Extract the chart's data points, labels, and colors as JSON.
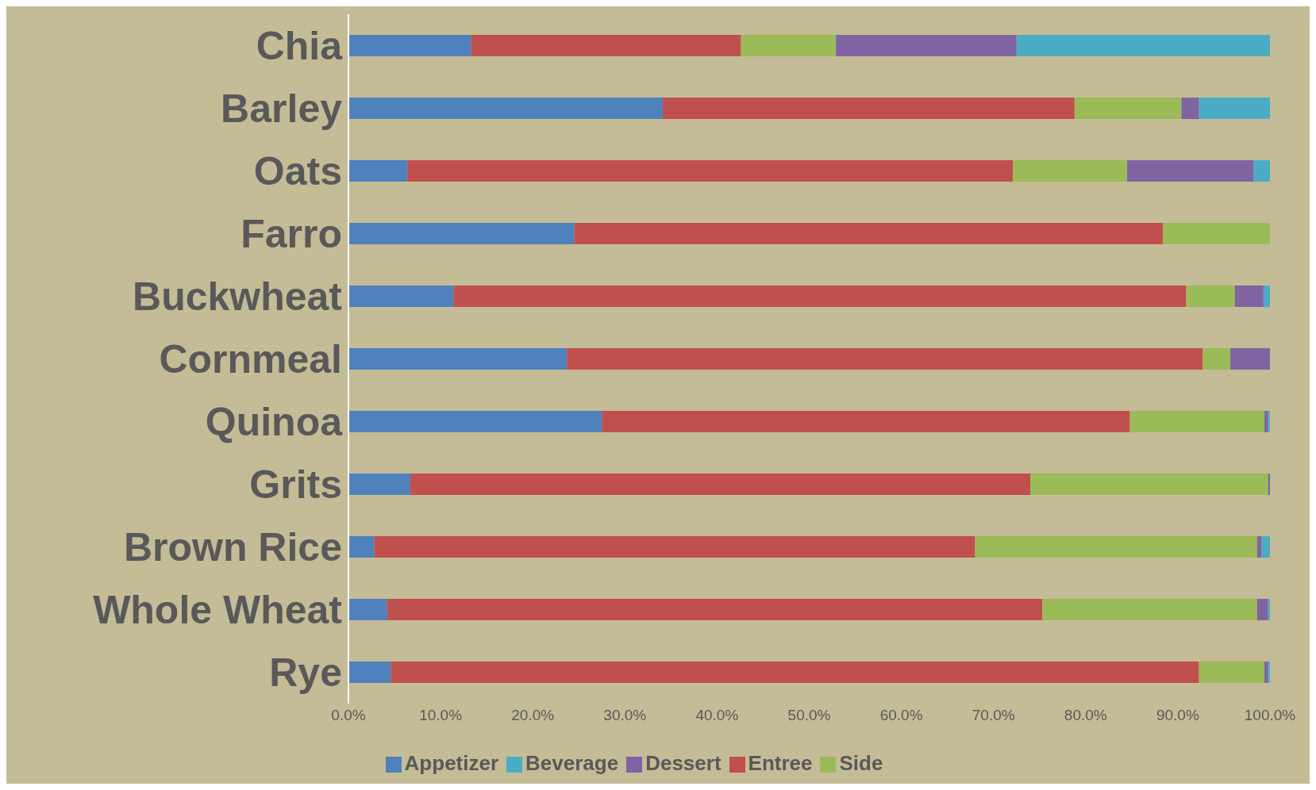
{
  "chart_data": {
    "type": "bar",
    "orientation": "horizontal",
    "stacked": true,
    "legend": "bottom",
    "grid": false,
    "categories": [
      "Chia",
      "Barley",
      "Oats",
      "Farro",
      "Buckwheat",
      "Cornmeal",
      "Quinoa",
      "Grits",
      "Brown Rice",
      "Whole Wheat",
      "Rye"
    ],
    "series": [
      {
        "name": "Appetizer",
        "color": "#4f81bd",
        "values": [
          13.3,
          34.1,
          6.4,
          24.5,
          11.4,
          23.7,
          27.5,
          6.7,
          2.8,
          4.2,
          4.6
        ]
      },
      {
        "name": "Entree",
        "color": "#c0504d",
        "values": [
          29.3,
          44.7,
          65.7,
          63.9,
          79.5,
          69.0,
          57.3,
          67.3,
          65.2,
          71.1,
          87.7
        ]
      },
      {
        "name": "Side",
        "color": "#9bbb59",
        "values": [
          10.3,
          11.6,
          12.4,
          11.6,
          5.3,
          3.0,
          14.6,
          25.8,
          30.6,
          23.3,
          7.1
        ]
      },
      {
        "name": "Dessert",
        "color": "#8064a2",
        "values": [
          19.6,
          1.9,
          13.7,
          0,
          3.1,
          4.3,
          0.4,
          0.2,
          0.5,
          1.2,
          0.4
        ]
      },
      {
        "name": "Beverage",
        "color": "#4bacc6",
        "values": [
          27.5,
          7.7,
          1.8,
          0,
          0.7,
          0,
          0.2,
          0,
          0.9,
          0.2,
          0.2
        ]
      }
    ],
    "xlim": [
      0,
      100
    ],
    "xticks": [
      {
        "value": 0,
        "label": "0.0%"
      },
      {
        "value": 10,
        "label": "10.0%"
      },
      {
        "value": 20,
        "label": "20.0%"
      },
      {
        "value": 30,
        "label": "30.0%"
      },
      {
        "value": 40,
        "label": "40.0%"
      },
      {
        "value": 50,
        "label": "50.0%"
      },
      {
        "value": 60,
        "label": "60.0%"
      },
      {
        "value": 70,
        "label": "70.0%"
      },
      {
        "value": 80,
        "label": "80.0%"
      },
      {
        "value": 90,
        "label": "90.0%"
      },
      {
        "value": 100,
        "label": "100.0%"
      }
    ]
  }
}
